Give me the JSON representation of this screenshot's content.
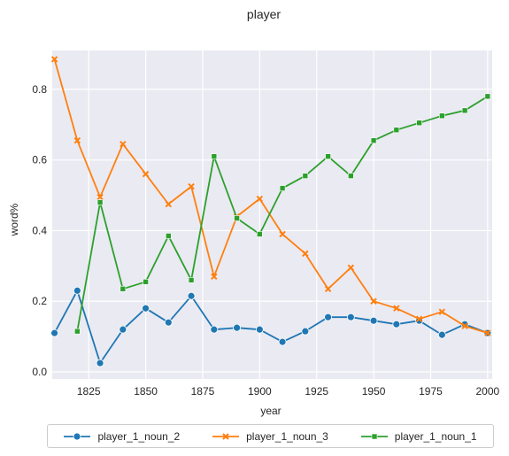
{
  "chart_data": {
    "type": "line",
    "title": "player",
    "xlabel": "year",
    "ylabel": "word%",
    "xlim": [
      1809,
      2002
    ],
    "ylim": [
      -0.02,
      0.91
    ],
    "xticks": [
      1825,
      1850,
      1875,
      1900,
      1925,
      1950,
      1975,
      2000
    ],
    "yticks": [
      0.0,
      0.2,
      0.4,
      0.6,
      0.8
    ],
    "grid": true,
    "legend_position": "bottom-center",
    "series": [
      {
        "name": "player_1_noun_2",
        "color": "#1f77b4",
        "marker": "circle",
        "x": [
          1810,
          1820,
          1830,
          1840,
          1850,
          1860,
          1870,
          1880,
          1890,
          1900,
          1910,
          1920,
          1930,
          1940,
          1950,
          1960,
          1970,
          1980,
          1990,
          2000
        ],
        "values": [
          0.11,
          0.23,
          0.025,
          0.12,
          0.18,
          0.14,
          0.215,
          0.12,
          0.125,
          0.12,
          0.085,
          0.115,
          0.155,
          0.155,
          0.145,
          0.135,
          0.145,
          0.105,
          0.135,
          0.11
        ]
      },
      {
        "name": "player_1_noun_3",
        "color": "#ff7f0e",
        "marker": "x",
        "x": [
          1810,
          1820,
          1830,
          1840,
          1850,
          1860,
          1870,
          1880,
          1890,
          1900,
          1910,
          1920,
          1930,
          1940,
          1950,
          1960,
          1970,
          1980,
          1990,
          2000
        ],
        "values": [
          0.885,
          0.655,
          0.495,
          0.645,
          0.56,
          0.475,
          0.525,
          0.27,
          0.44,
          0.49,
          0.39,
          0.335,
          0.235,
          0.295,
          0.2,
          0.18,
          0.15,
          0.17,
          0.13,
          0.11
        ]
      },
      {
        "name": "player_1_noun_1",
        "color": "#2ca02c",
        "marker": "square",
        "x": [
          1820,
          1830,
          1840,
          1850,
          1860,
          1870,
          1880,
          1890,
          1900,
          1910,
          1920,
          1930,
          1940,
          1950,
          1960,
          1970,
          1980,
          1990,
          2000
        ],
        "values": [
          0.115,
          0.48,
          0.235,
          0.255,
          0.385,
          0.26,
          0.61,
          0.435,
          0.39,
          0.52,
          0.555,
          0.61,
          0.555,
          0.655,
          0.685,
          0.705,
          0.725,
          0.74,
          0.78
        ]
      }
    ]
  }
}
